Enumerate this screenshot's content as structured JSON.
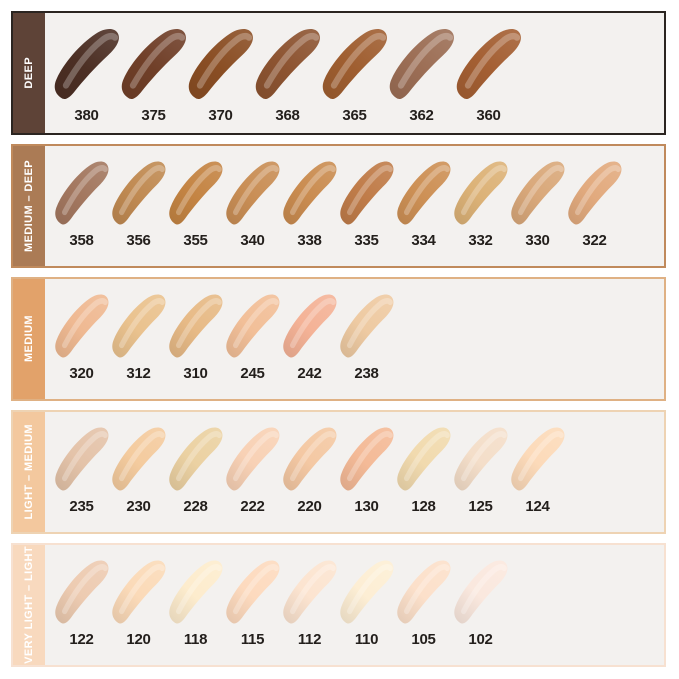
{
  "style": {
    "page_background": "#ffffff",
    "row_background": "#f3f1ef",
    "number_color": "#231f1c"
  },
  "chart_data": {
    "type": "table",
    "description": "Foundation shade swatch chart, five depth groups with numbered shade smears",
    "rows": [
      {
        "label": "DEEP",
        "bar_color": "#5e4337",
        "border_color": "#2b2521",
        "label_text_color": "#ffffff",
        "shades": [
          {
            "code": "380",
            "color": "#4c2f24"
          },
          {
            "code": "375",
            "color": "#703f28"
          },
          {
            "code": "370",
            "color": "#8a4e24"
          },
          {
            "code": "368",
            "color": "#8d5431"
          },
          {
            "code": "365",
            "color": "#9f5e30"
          },
          {
            "code": "362",
            "color": "#9c6e55"
          },
          {
            "code": "360",
            "color": "#a45f33"
          }
        ]
      },
      {
        "label": "MEDIUM – DEEP",
        "bar_color": "#ab7b55",
        "border_color": "#c08a5c",
        "label_text_color": "#ffffff",
        "shades": [
          {
            "code": "358",
            "color": "#a3775f"
          },
          {
            "code": "356",
            "color": "#c08a52"
          },
          {
            "code": "355",
            "color": "#c48443"
          },
          {
            "code": "340",
            "color": "#c98e55"
          },
          {
            "code": "338",
            "color": "#ca8c50"
          },
          {
            "code": "335",
            "color": "#c07c49"
          },
          {
            "code": "334",
            "color": "#cd9055"
          },
          {
            "code": "332",
            "color": "#dcb277"
          },
          {
            "code": "330",
            "color": "#d9a87a"
          },
          {
            "code": "322",
            "color": "#e2aa7e"
          }
        ]
      },
      {
        "label": "MEDIUM",
        "bar_color": "#e2a26a",
        "border_color": "#dfb184",
        "label_text_color": "#ffffff",
        "shades": [
          {
            "code": "320",
            "color": "#efb992"
          },
          {
            "code": "312",
            "color": "#eac28e"
          },
          {
            "code": "310",
            "color": "#e7ba86"
          },
          {
            "code": "245",
            "color": "#f2bf98"
          },
          {
            "code": "242",
            "color": "#f4b296"
          },
          {
            "code": "238",
            "color": "#eecaa2"
          }
        ]
      },
      {
        "label": "LIGHT – MEDIUM",
        "bar_color": "#f3c89e",
        "border_color": "#eed3b3",
        "label_text_color": "#ffffff",
        "shades": [
          {
            "code": "235",
            "color": "#e4c3a9"
          },
          {
            "code": "230",
            "color": "#f4cb9e"
          },
          {
            "code": "228",
            "color": "#ebd1a2"
          },
          {
            "code": "222",
            "color": "#f8d1b5"
          },
          {
            "code": "220",
            "color": "#f4c8a3"
          },
          {
            "code": "130",
            "color": "#f4ba97"
          },
          {
            "code": "128",
            "color": "#f1daae"
          },
          {
            "code": "125",
            "color": "#f4dec9"
          },
          {
            "code": "124",
            "color": "#fcdab9"
          }
        ]
      },
      {
        "label": "VERY LIGHT – LIGHT",
        "bar_color": "#f8d9be",
        "border_color": "#f7e1d1",
        "label_text_color": "#ffffff",
        "shades": [
          {
            "code": "122",
            "color": "#edcbb1"
          },
          {
            "code": "120",
            "color": "#fbdab8"
          },
          {
            "code": "118",
            "color": "#fdeccd"
          },
          {
            "code": "115",
            "color": "#fddabe"
          },
          {
            "code": "112",
            "color": "#fce4d0"
          },
          {
            "code": "110",
            "color": "#fdeed4"
          },
          {
            "code": "105",
            "color": "#fce0ca"
          },
          {
            "code": "102",
            "color": "#fae8de"
          }
        ]
      }
    ]
  }
}
